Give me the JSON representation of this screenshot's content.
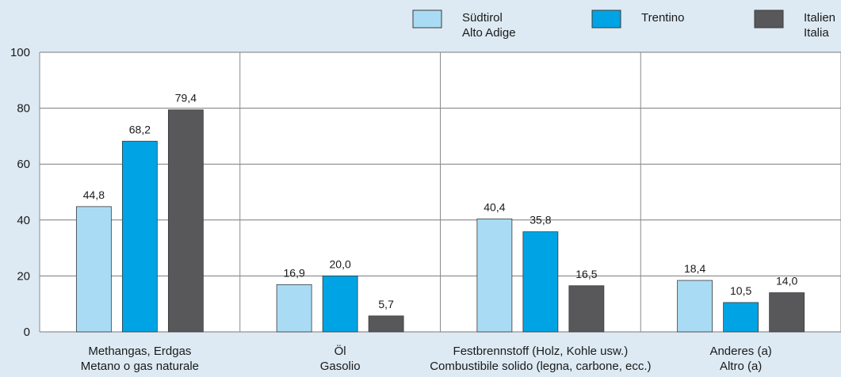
{
  "chart_data": {
    "type": "bar",
    "categories": [
      [
        "Methangas, Erdgas",
        "Metano o gas naturale"
      ],
      [
        "Öl",
        "Gasolio"
      ],
      [
        "Festbrennstoff (Holz, Kohle usw.)",
        "Combustibile solido (legna, carbone, ecc.)"
      ],
      [
        "Anderes (a)",
        "Altro (a)"
      ]
    ],
    "series": [
      {
        "name": [
          "Südtirol",
          "Alto Adige"
        ],
        "values": [
          44.8,
          16.9,
          40.4,
          18.4
        ],
        "labels": [
          "44,8",
          "16,9",
          "40,4",
          "18,4"
        ],
        "color": "#a9dcf4"
      },
      {
        "name": [
          "Trentino"
        ],
        "values": [
          68.2,
          20.0,
          35.8,
          10.5
        ],
        "labels": [
          "68,2",
          "20,0",
          "35,8",
          "10,5"
        ],
        "color": "#00a4e4"
      },
      {
        "name": [
          "Italien",
          "Italia"
        ],
        "values": [
          79.4,
          5.7,
          16.5,
          14.0
        ],
        "labels": [
          "79,4",
          "5,7",
          "16,5",
          "14,0"
        ],
        "color": "#58585a"
      }
    ],
    "ylim": [
      0,
      100
    ],
    "yticks": [
      "0",
      "20",
      "40",
      "60",
      "80",
      "100"
    ],
    "grid": true,
    "legend": "top-right"
  }
}
